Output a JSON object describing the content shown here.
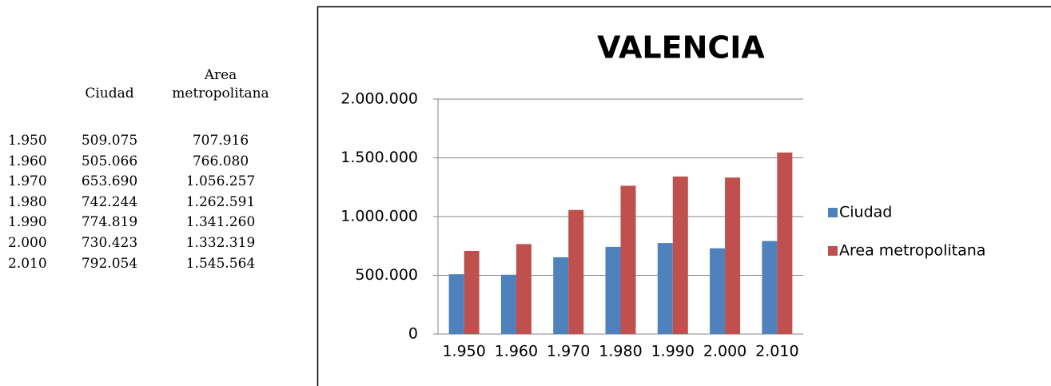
{
  "table": {
    "headers": [
      "Ciudad",
      "Area metropolitana"
    ],
    "rows": [
      [
        "1.950",
        "509.075",
        "707.916"
      ],
      [
        "1.960",
        "505.066",
        "766.080"
      ],
      [
        "1.970",
        "653.690",
        "1.056.257"
      ],
      [
        "1.980",
        "742.244",
        "1.262.591"
      ],
      [
        "1.990",
        "774.819",
        "1.341.260"
      ],
      [
        "2.000",
        "730.423",
        "1.332.319"
      ],
      [
        "2.010",
        "792.054",
        "1.545.564"
      ]
    ]
  },
  "chart_data": {
    "type": "bar",
    "title": "VALENCIA",
    "categories": [
      "1.950",
      "1.960",
      "1.970",
      "1.980",
      "1.990",
      "2.000",
      "2.010"
    ],
    "series": [
      {
        "name": "Ciudad",
        "color": "#4f81bd",
        "values": [
          509075,
          505066,
          653690,
          742244,
          774819,
          730423,
          792054
        ]
      },
      {
        "name": "Area metropolitana",
        "color": "#c0504d",
        "values": [
          707916,
          766080,
          1056257,
          1262591,
          1341260,
          1332319,
          1545564
        ]
      }
    ],
    "ylim": [
      0,
      2000000
    ],
    "yticks": [
      0,
      {
        "value": 500000,
        "label": "500.000"
      },
      {
        "value": 1000000,
        "label": "1.000.000"
      },
      {
        "value": 1500000,
        "label": "1.500.000"
      },
      {
        "value": 2000000,
        "label": "2.000.000"
      }
    ],
    "grid": true,
    "legend": "right"
  }
}
